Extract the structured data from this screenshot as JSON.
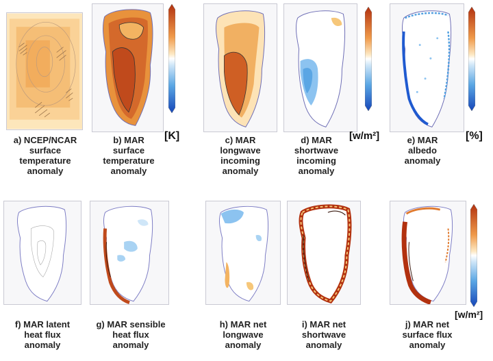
{
  "panels": [
    {
      "id": "a",
      "caption": [
        "a) NCEP/NCAR",
        "surface",
        "temperature",
        "anomaly"
      ]
    },
    {
      "id": "b",
      "caption": [
        "b) MAR",
        "surface",
        "temperature",
        "anomaly"
      ]
    },
    {
      "id": "c",
      "caption": [
        "c) MAR",
        "longwave",
        "incoming",
        "anomaly"
      ]
    },
    {
      "id": "d",
      "caption": [
        "d) MAR",
        "shortwave",
        "incoming",
        "anomaly"
      ]
    },
    {
      "id": "e",
      "caption": [
        "e) MAR",
        "albedo",
        "anomaly"
      ]
    },
    {
      "id": "f",
      "caption": [
        "f) MAR latent",
        "heat flux",
        "anomaly"
      ]
    },
    {
      "id": "g",
      "caption": [
        "g) MAR sensible",
        "heat flux",
        "anomaly"
      ]
    },
    {
      "id": "h",
      "caption": [
        "h) MAR net",
        "longwave",
        "anomaly"
      ]
    },
    {
      "id": "i",
      "caption": [
        "i) MAR net",
        "shortwave",
        "anomaly"
      ]
    },
    {
      "id": "j",
      "caption": [
        "j) MAR net",
        "surface flux",
        "anomaly"
      ]
    }
  ],
  "units": {
    "temperature": "[K]",
    "radiation": "[w/m²]",
    "albedo": "[%]",
    "flux": "[w/m²]"
  },
  "colors": {
    "warm_dark": "#b2310f",
    "warm_mid": "#e07a2e",
    "warm_light": "#f6c77a",
    "neutral": "#ffffff",
    "cool_light": "#a9d3f3",
    "cool_mid": "#4f9fe0",
    "cool_dark": "#1545b8",
    "outline": "#7c7cc4"
  }
}
